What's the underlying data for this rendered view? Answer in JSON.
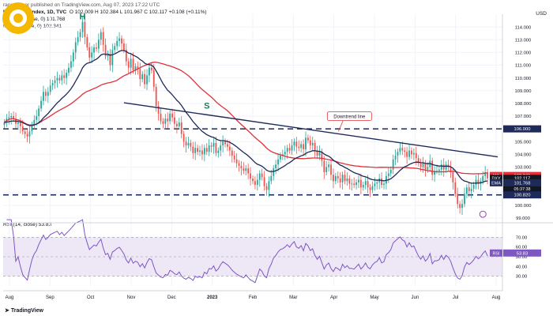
{
  "header": {
    "publisher": "ranadagger published on TradingView.com, Aug 07, 2023 17:22 UTC",
    "symbol_line": "U.S. Dollar Index, 1D, TVC",
    "ohlc": "O 102.009  H 102.384  L 101.967  C 102.117  +0.108 (+0.11%)",
    "ema_line": "EMA (20, close, 0)  101.768",
    "ma_line": "MA (50, close, 0)  102.341"
  },
  "rsi_header": "RSI (14, close)  53.83",
  "currency": "USD",
  "brand": "TradingView",
  "colors": {
    "up": "#26a69a",
    "down": "#ef5350",
    "ema": "#1e2a5a",
    "ma": "#e0313a",
    "trend": "#1e2a5a",
    "rsi": "#7e57c2",
    "band": "#ede7f6"
  },
  "chart_data": {
    "type": "candlestick",
    "price_axis": {
      "min": 99,
      "max": 115,
      "ticks": [
        "114.000",
        "113.000",
        "112.000",
        "111.000",
        "110.000",
        "109.000",
        "108.000",
        "107.000",
        "106.000",
        "105.000",
        "104.000",
        "103.000",
        "102.000",
        "101.000",
        "100.000",
        "99.000"
      ]
    },
    "x_axis": {
      "labels": [
        "Aug",
        "Sep",
        "Oct",
        "Nov",
        "Dec",
        "2023",
        "Feb",
        "Mar",
        "Apr",
        "May",
        "Jun",
        "Jul",
        "Aug"
      ]
    },
    "closes": [
      106.5,
      106.8,
      106.9,
      107,
      106.8,
      106.4,
      106.5,
      106.2,
      105.8,
      105.6,
      105.4,
      105.8,
      106.3,
      106.7,
      107,
      107.6,
      108.2,
      108.9,
      108.6,
      108.9,
      109.4,
      109.6,
      109.8,
      110,
      109.8,
      110.2,
      110,
      110.4,
      110.8,
      111.3,
      112,
      112.8,
      113.2,
      113.6,
      114.4,
      113.2,
      112.4,
      111.6,
      112,
      112.4,
      112.3,
      113,
      113.6,
      112.6,
      111.7,
      111.9,
      111,
      112.2,
      112.5,
      112.9,
      113.1,
      112.7,
      112.2,
      111.3,
      110.8,
      111.5,
      110.6,
      110.9,
      110.7,
      109.9,
      110.3,
      109.5,
      110.2,
      110.8,
      110.6,
      109.3,
      107.8,
      107.2,
      106.6,
      106.4,
      106.8,
      106.6,
      107.2,
      106.9,
      106.4,
      106.2,
      106.5,
      105.6,
      105,
      104.7,
      104.9,
      104.6,
      104.1,
      104.5,
      104.2,
      104.3,
      104,
      104.5,
      104.2,
      104.7,
      104.6,
      104.9,
      104.1,
      104.3,
      104.7,
      105,
      104.8,
      104.6,
      104.3,
      103.9,
      103.6,
      103.3,
      103.1,
      102.9,
      102.7,
      102.9,
      102.5,
      102.1,
      101.9,
      101.6,
      102,
      102.5,
      102.2,
      101.5,
      101.2,
      101.9,
      102.3,
      102.9,
      103.2,
      103.6,
      103.9,
      104,
      104.2,
      104.5,
      104.3,
      104.7,
      105,
      104.6,
      104.5,
      104.8,
      104.4,
      105.3,
      105.1,
      104.7,
      104.9,
      104.3,
      103.9,
      104.2,
      103.5,
      102.6,
      103,
      103.2,
      102.4,
      101.9,
      102.3,
      102.1,
      101.8,
      102.4,
      101.9,
      102.1,
      101.7,
      101.7,
      101.6,
      101.8,
      102,
      101.4,
      101.6,
      101.9,
      101.4,
      101.2,
      101.5,
      101.7,
      101.8,
      102.1,
      101.6,
      101.7,
      102.3,
      102.5,
      102.8,
      103.6,
      103.9,
      104.2,
      104.5,
      104.3,
      104.2,
      103.8,
      104.3,
      104,
      104.1,
      103.7,
      103.3,
      103,
      103.3,
      102.8,
      103,
      103.5,
      102.4,
      102.7,
      102.7,
      102.8,
      103.2,
      102.8,
      103.2,
      103,
      102.6,
      101.8,
      100.9,
      100.1,
      99.8,
      100.1,
      100.9,
      101.4,
      101.1,
      101.3,
      101.6,
      102,
      101.7,
      101.9,
      102.3,
      102.6,
      102.1
    ],
    "ema_20": 101.768,
    "ma_50": 102.341,
    "levels": {
      "resistance": 106.0,
      "support": 100.82
    },
    "price_labels": [
      {
        "tag": "MA",
        "value": "102.341"
      },
      {
        "tag": "DXY",
        "value": "102.117",
        "extra1": "-4.68%",
        "extra2": "05:37:38"
      },
      {
        "tag": "EMA",
        "value": "101.768"
      },
      {
        "tag": "",
        "value": "100.820"
      },
      {
        "tag": "",
        "value": "106.000"
      }
    ],
    "annotations": {
      "head": "H",
      "shoulder": "S",
      "downtrend": "Downtrend line"
    },
    "rsi": {
      "period": 14,
      "current": 53.83,
      "axis": {
        "min": 20,
        "max": 80
      },
      "ticks": [
        "70.00",
        "60.00",
        "50.00",
        "40.00",
        "30.00"
      ],
      "band": [
        30,
        70
      ]
    }
  }
}
